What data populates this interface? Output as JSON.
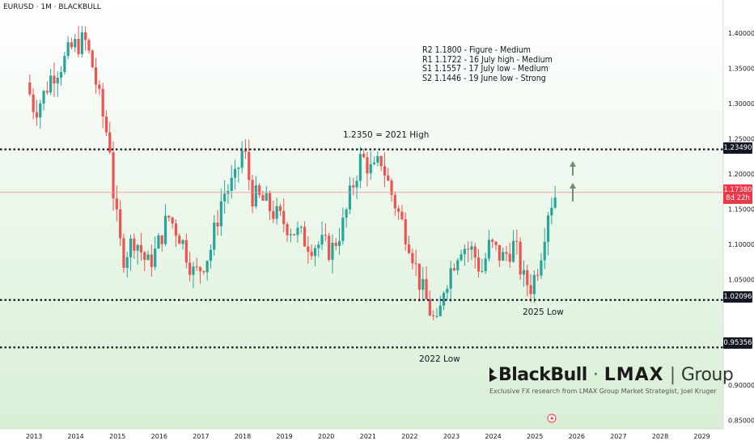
{
  "header": {
    "symbol": "EURUSD · 1M · BLACKBULL"
  },
  "levels_note": [
    "R2 1.1800 - Figure - Medium",
    "R1 1.1722 - 16 July high - Medium",
    "S1 1.1557 - 17 July low - Medium",
    "S2 1.1446 - 19 June low - Strong"
  ],
  "annotations": {
    "high_2021": "1.2350 = 2021 High",
    "low_2025": "2025 Low",
    "low_2022": "2022 Low"
  },
  "brand": {
    "name": "BlackBull",
    "sep": "·",
    "partner": "LMAX",
    "group": "Group",
    "tagline": "Exclusive FX research from LMAX Group Market Strategist, Joel Kruger"
  },
  "badges": {
    "level_top": "1.23490",
    "price": "1.17380",
    "countdown": "8d 22h",
    "level_mid": "1.02096",
    "level_low": "0.95356"
  },
  "colors": {
    "up": "#26a69a",
    "down": "#ef5350",
    "bg_top": "#ffffff",
    "bg_bottom": "#d8efd6",
    "arrow": "#6b8f73",
    "price_badge": "#f23645",
    "level_badge": "#131722"
  },
  "chart_data": {
    "type": "candlestick",
    "timeframe": "1M",
    "ylim": [
      0.83,
      1.43
    ],
    "y_ticks": [
      "1.40000",
      "1.35000",
      "1.30000",
      "1.25000",
      "1.20000",
      "1.15000",
      "1.10000",
      "1.05000",
      "0.90000",
      "0.85000"
    ],
    "x_ticks": [
      "2013",
      "2014",
      "2015",
      "2016",
      "2017",
      "2018",
      "2019",
      "2020",
      "2021",
      "2022",
      "2023",
      "2024",
      "2025",
      "2026",
      "2027",
      "2028",
      "2029"
    ],
    "levels": [
      1.2349,
      1.02096,
      0.95356
    ],
    "last_price": 1.1738,
    "path_points": [
      [
        2012.9,
        1.33
      ],
      [
        2013.1,
        1.29
      ],
      [
        2013.3,
        1.31
      ],
      [
        2013.5,
        1.34
      ],
      [
        2013.8,
        1.36
      ],
      [
        2014.0,
        1.38
      ],
      [
        2014.3,
        1.39
      ],
      [
        2014.5,
        1.35
      ],
      [
        2014.7,
        1.29
      ],
      [
        2014.9,
        1.24
      ],
      [
        2015.0,
        1.16
      ],
      [
        2015.2,
        1.08
      ],
      [
        2015.5,
        1.11
      ],
      [
        2015.8,
        1.07
      ],
      [
        2016.0,
        1.09
      ],
      [
        2016.3,
        1.14
      ],
      [
        2016.6,
        1.11
      ],
      [
        2016.9,
        1.06
      ],
      [
        2017.0,
        1.06
      ],
      [
        2017.3,
        1.09
      ],
      [
        2017.6,
        1.17
      ],
      [
        2017.9,
        1.19
      ],
      [
        2018.1,
        1.24
      ],
      [
        2018.3,
        1.17
      ],
      [
        2018.6,
        1.16
      ],
      [
        2018.9,
        1.14
      ],
      [
        2019.3,
        1.12
      ],
      [
        2019.7,
        1.1
      ],
      [
        2020.0,
        1.1
      ],
      [
        2020.2,
        1.09
      ],
      [
        2020.5,
        1.13
      ],
      [
        2020.7,
        1.18
      ],
      [
        2020.9,
        1.22
      ],
      [
        2021.0,
        1.22
      ],
      [
        2021.2,
        1.2
      ],
      [
        2021.4,
        1.22
      ],
      [
        2021.6,
        1.18
      ],
      [
        2021.9,
        1.13
      ],
      [
        2022.1,
        1.1
      ],
      [
        2022.3,
        1.05
      ],
      [
        2022.6,
        1.0
      ],
      [
        2022.75,
        0.98
      ],
      [
        2022.9,
        1.04
      ],
      [
        2023.1,
        1.07
      ],
      [
        2023.3,
        1.1
      ],
      [
        2023.6,
        1.09
      ],
      [
        2023.8,
        1.06
      ],
      [
        2024.0,
        1.1
      ],
      [
        2024.3,
        1.08
      ],
      [
        2024.6,
        1.1
      ],
      [
        2024.8,
        1.05
      ],
      [
        2025.0,
        1.04
      ],
      [
        2025.2,
        1.08
      ],
      [
        2025.4,
        1.15
      ],
      [
        2025.55,
        1.17
      ]
    ]
  }
}
